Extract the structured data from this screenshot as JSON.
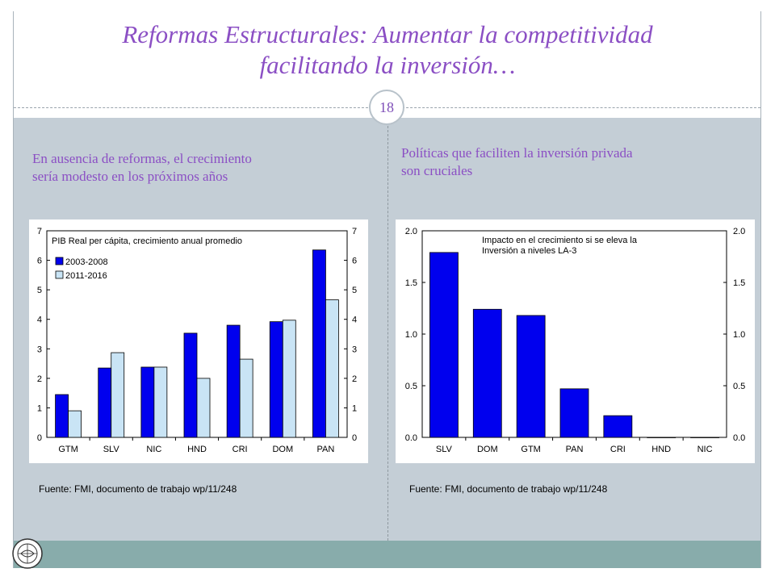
{
  "page": {
    "title_line1": "Reformas Estructurales: Aumentar la competitividad",
    "title_line2": "facilitando la inversión…",
    "page_number": "18"
  },
  "left": {
    "subtitle_line1": "En ausencia de reformas, el crecimiento",
    "subtitle_line2": "sería modesto en los próximos años",
    "source": "Fuente: FMI, documento de trabajo wp/11/248"
  },
  "right": {
    "subtitle_line1": "Políticas que faciliten la inversión privada",
    "subtitle_line2": "son cruciales",
    "source": "Fuente: FMI, documento de trabajo wp/11/248"
  },
  "chart_data": [
    {
      "type": "bar",
      "title": "PIB Real per cápita, crecimiento anual promedio",
      "categories": [
        "GTM",
        "SLV",
        "NIC",
        "HND",
        "CRI",
        "DOM",
        "PAN"
      ],
      "series": [
        {
          "name": "2003-2008",
          "values": [
            1.45,
            2.35,
            2.38,
            3.53,
            3.8,
            3.92,
            6.35
          ],
          "color": "#0000ee"
        },
        {
          "name": "2011-2016",
          "values": [
            0.9,
            2.87,
            2.38,
            2.0,
            2.65,
            3.97,
            4.66
          ],
          "color": "#c9e4f5"
        }
      ],
      "ylim": [
        0,
        7
      ],
      "yticks": [
        "0",
        "1",
        "2",
        "3",
        "4",
        "5",
        "6",
        "7"
      ],
      "legend": "top-left",
      "grid": false,
      "dual_axis": true
    },
    {
      "type": "bar",
      "title_line1": "Impacto en el crecimiento si se eleva la",
      "title_line2": "Inversión a niveles LA-3",
      "categories": [
        "SLV",
        "DOM",
        "GTM",
        "PAN",
        "CRI",
        "HND",
        "NIC"
      ],
      "values": [
        1.79,
        1.24,
        1.18,
        0.47,
        0.21,
        0.0,
        0.0
      ],
      "color": "#0000ee",
      "ylim": [
        0,
        2
      ],
      "yticks": [
        "0.0",
        "0.5",
        "1.0",
        "1.5",
        "2.0"
      ],
      "grid": false,
      "dual_axis": true
    }
  ]
}
